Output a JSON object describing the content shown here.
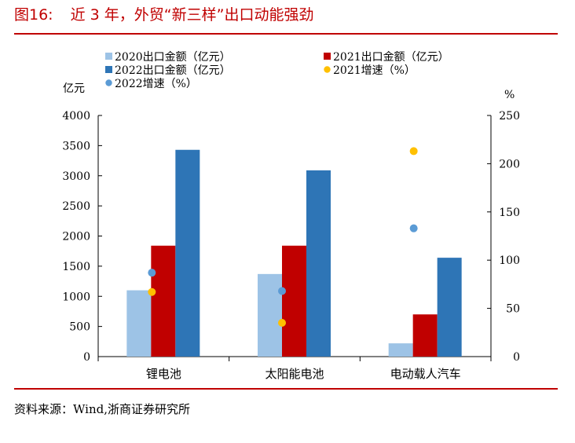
{
  "figure": {
    "number": "图16:",
    "title": "近 3 年，外贸“新三样”出口动能强劲",
    "source": "资料来源：Wind,浙商证券研究所"
  },
  "colors": {
    "accent": "#c00000",
    "s2020": "#9dc3e6",
    "s2021": "#c00000",
    "s2022": "#2e75b6",
    "g2021": "#ffc000",
    "g2022": "#5b9bd5"
  },
  "chart_data": {
    "type": "bar",
    "categories": [
      "锂电池",
      "太阳能电池",
      "电动载人汽车"
    ],
    "series": [
      {
        "name": "2020出口金额（亿元）",
        "type": "bar",
        "axis": "left",
        "values": [
          1100,
          1370,
          220
        ]
      },
      {
        "name": "2021出口金额（亿元）",
        "type": "bar",
        "axis": "left",
        "values": [
          1840,
          1840,
          700
        ]
      },
      {
        "name": "2022出口金额（亿元）",
        "type": "bar",
        "axis": "left",
        "values": [
          3430,
          3090,
          1640
        ]
      },
      {
        "name": "2021增速（%）",
        "type": "scatter",
        "axis": "right",
        "values": [
          67,
          35,
          213
        ]
      },
      {
        "name": "2022增速（%）",
        "type": "scatter",
        "axis": "right",
        "values": [
          87,
          68,
          133
        ]
      }
    ],
    "ylabel": "亿元",
    "y2label": "%",
    "ylim": [
      0,
      4000
    ],
    "y2lim": [
      0,
      250
    ],
    "yticks": [
      "0",
      "500",
      "1000",
      "1500",
      "2000",
      "2500",
      "3000",
      "3500",
      "4000"
    ],
    "y2ticks": [
      "0",
      "50",
      "100",
      "150",
      "200",
      "250"
    ],
    "legend": "top",
    "grid": false
  }
}
